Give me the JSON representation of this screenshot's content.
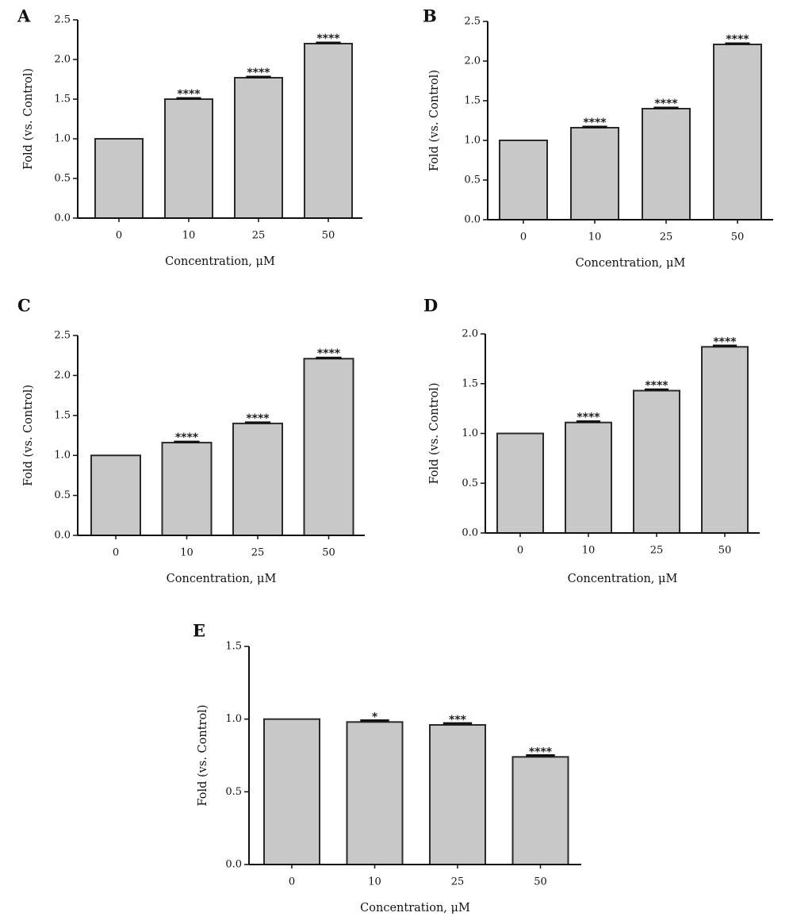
{
  "chart_data": [
    {
      "type": "bar",
      "panel": "A",
      "categories": [
        "0",
        "10",
        "25",
        "50"
      ],
      "values": [
        1.0,
        1.5,
        1.77,
        2.2
      ],
      "errors": [
        0.0,
        0.01,
        0.01,
        0.01
      ],
      "significance": [
        "",
        "****",
        "****",
        "****"
      ],
      "ylim": [
        0,
        2.5
      ],
      "yticks": [
        "0.0",
        "0.5",
        "1.0",
        "1.5",
        "2.0",
        "2.5"
      ],
      "xlabel": "Concentration, μM",
      "ylabel": "Fold (vs. Control)"
    },
    {
      "type": "bar",
      "panel": "B",
      "categories": [
        "0",
        "10",
        "25",
        "50"
      ],
      "values": [
        1.0,
        1.16,
        1.4,
        2.21
      ],
      "errors": [
        0.0,
        0.01,
        0.01,
        0.01
      ],
      "significance": [
        "",
        "****",
        "****",
        "****"
      ],
      "ylim": [
        0,
        2.5
      ],
      "yticks": [
        "0.0",
        "0.5",
        "1.0",
        "1.5",
        "2.0",
        "2.5"
      ],
      "xlabel": "Concentration, μM",
      "ylabel": "Fold (vs. Control)"
    },
    {
      "type": "bar",
      "panel": "C",
      "categories": [
        "0",
        "10",
        "25",
        "50"
      ],
      "values": [
        1.0,
        1.16,
        1.4,
        2.21
      ],
      "errors": [
        0.0,
        0.01,
        0.01,
        0.01
      ],
      "significance": [
        "",
        "****",
        "****",
        "****"
      ],
      "ylim": [
        0,
        2.5
      ],
      "yticks": [
        "0.0",
        "0.5",
        "1.0",
        "1.5",
        "2.0",
        "2.5"
      ],
      "xlabel": "Concentration, μM",
      "ylabel": "Fold (vs. Control)"
    },
    {
      "type": "bar",
      "panel": "D",
      "categories": [
        "0",
        "10",
        "25",
        "50"
      ],
      "values": [
        1.0,
        1.11,
        1.43,
        1.87
      ],
      "errors": [
        0.0,
        0.01,
        0.01,
        0.01
      ],
      "significance": [
        "",
        "****",
        "****",
        "****"
      ],
      "ylim": [
        0,
        2.0
      ],
      "yticks": [
        "0.0",
        "0.5",
        "1.0",
        "1.5",
        "2.0"
      ],
      "xlabel": "Concentration, μM",
      "ylabel": "Fold (vs. Control)"
    },
    {
      "type": "bar",
      "panel": "E",
      "categories": [
        "0",
        "10",
        "25",
        "50"
      ],
      "values": [
        1.0,
        0.98,
        0.96,
        0.74
      ],
      "errors": [
        0.0,
        0.01,
        0.01,
        0.01
      ],
      "significance": [
        "",
        "*",
        "***",
        "****"
      ],
      "ylim": [
        0,
        1.5
      ],
      "yticks": [
        "0.0",
        "0.5",
        "1.0",
        "1.5"
      ],
      "xlabel": "Concentration, μM",
      "ylabel": "Fold (vs. Control)"
    }
  ],
  "colors": {
    "bar_fill": "#c8c8c8",
    "bar_stroke": "#2a2a2a",
    "axis": "#111111"
  }
}
